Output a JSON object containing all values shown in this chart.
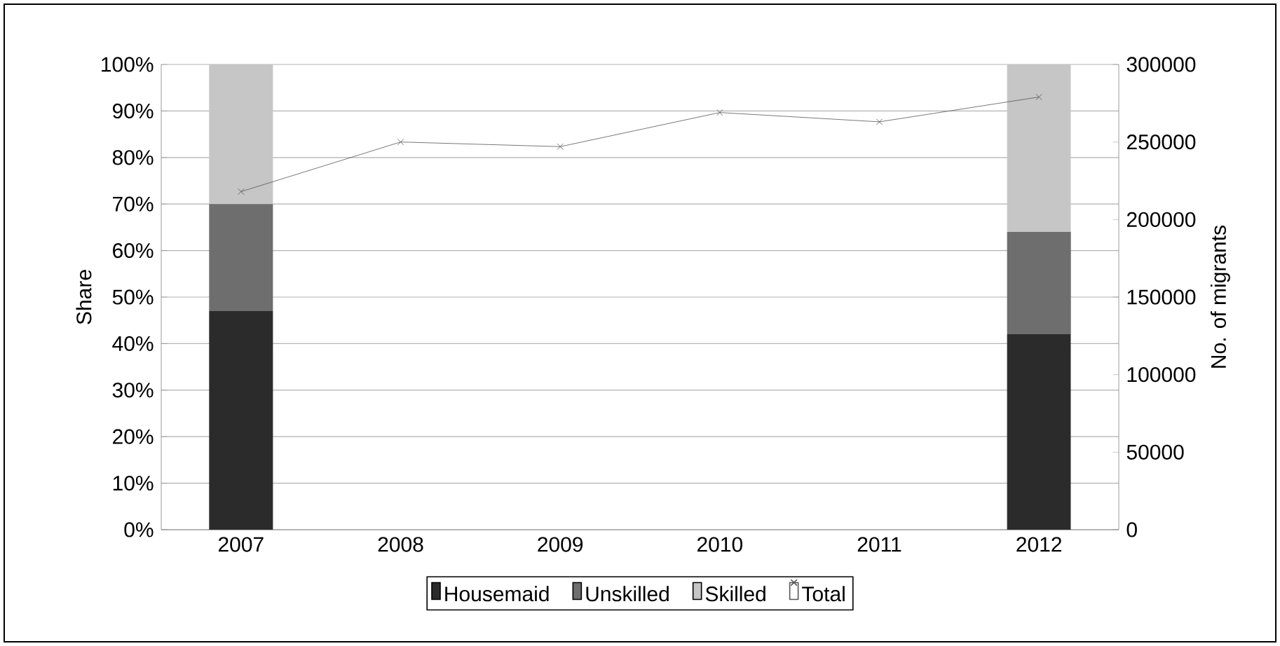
{
  "chart_data": {
    "type": "bar",
    "stacked": true,
    "ylabel": "Share",
    "y2label": "No. of migrants",
    "categories": [
      "2007",
      "2008",
      "2009",
      "2010",
      "2011",
      "2012"
    ],
    "series": [
      {
        "name": "Housemaid",
        "color": "#2b2b2b",
        "values": [
          47,
          null,
          null,
          null,
          null,
          42
        ]
      },
      {
        "name": "Unskilled",
        "color": "#6e6e6e",
        "values": [
          23,
          null,
          null,
          null,
          null,
          22
        ]
      },
      {
        "name": "Skilled",
        "color": "#c6c6c6",
        "values": [
          30,
          null,
          null,
          null,
          null,
          36
        ]
      },
      {
        "name": "Total",
        "type": "line",
        "axis": "y2",
        "color": "#555555",
        "marker": "cross",
        "values": [
          218000,
          250000,
          247000,
          269000,
          263000,
          279000
        ]
      }
    ],
    "ylim": [
      0,
      100
    ],
    "yticks": [
      {
        "value": 0,
        "label": "0%"
      },
      {
        "value": 10,
        "label": "10%"
      },
      {
        "value": 20,
        "label": "20%"
      },
      {
        "value": 30,
        "label": "30%"
      },
      {
        "value": 40,
        "label": "40%"
      },
      {
        "value": 50,
        "label": "50%"
      },
      {
        "value": 60,
        "label": "60%"
      },
      {
        "value": 70,
        "label": "70%"
      },
      {
        "value": 80,
        "label": "80%"
      },
      {
        "value": 90,
        "label": "90%"
      },
      {
        "value": 100,
        "label": "100%"
      }
    ],
    "y2lim": [
      0,
      300000
    ],
    "y2ticks": [
      0,
      50000,
      100000,
      150000,
      200000,
      250000,
      300000
    ],
    "grid": "y",
    "legend": "bottom"
  }
}
